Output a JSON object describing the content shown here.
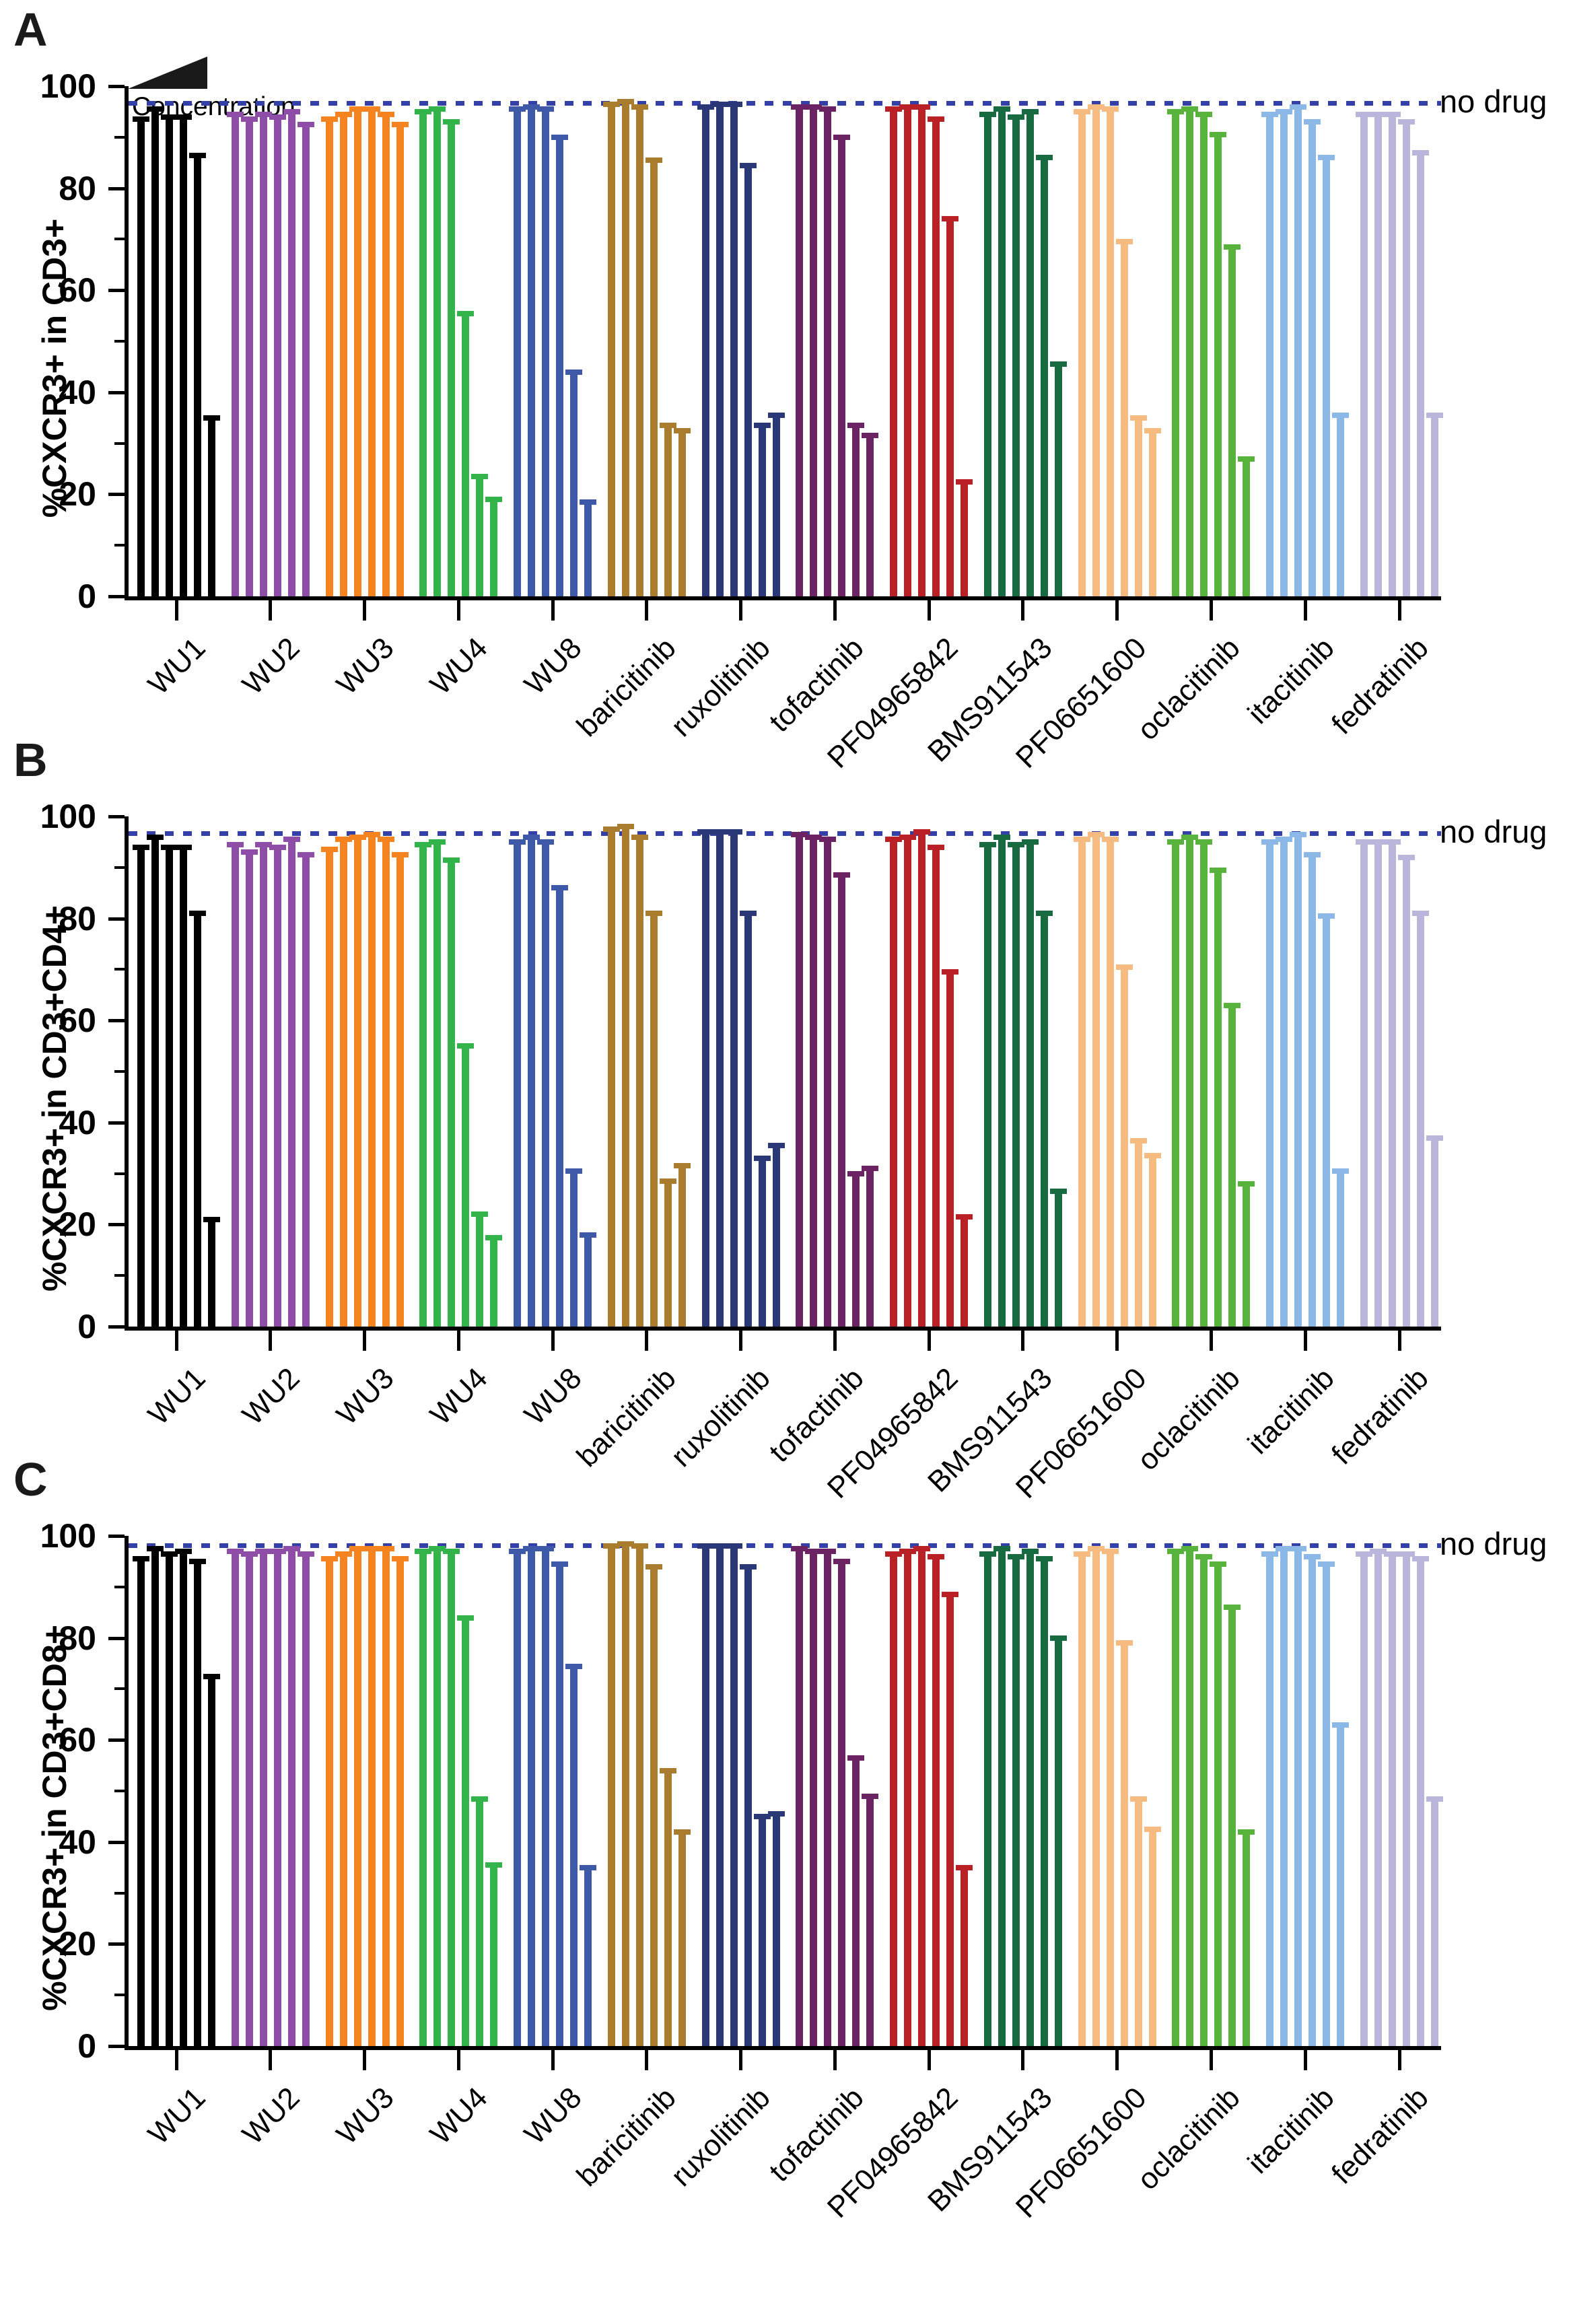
{
  "figure": {
    "reference_line_label": "no drug",
    "concentration_label": "Concentration"
  },
  "chart_data": {
    "type": "bar",
    "ylim": [
      0,
      100
    ],
    "yticks": [
      0,
      20,
      40,
      60,
      80,
      100
    ],
    "minor_yticks": [
      10,
      30,
      50,
      70,
      90
    ],
    "grid": false,
    "legend": "none",
    "bars_per_group": 6,
    "bars_meaning": "increasing drug concentration, left to right within each group",
    "reference_line_label": "no drug",
    "reference_line_color": "#3340a8",
    "categories": [
      "WU1",
      "WU2",
      "WU3",
      "WU4",
      "WU8",
      "baricitinib",
      "ruxolitinib",
      "tofactinib",
      "PF04965842",
      "BMS911543",
      "PF06651600",
      "oclacitinib",
      "itacitinib",
      "fedratinib"
    ],
    "bar_colors": [
      "#000000",
      "#8e4da6",
      "#f5831f",
      "#33b44a",
      "#3d59a8",
      "#a97c2e",
      "#2b3878",
      "#6b2364",
      "#b92126",
      "#186b40",
      "#f5bb80",
      "#57b33b",
      "#8cb8e8",
      "#bab5da"
    ],
    "annotation": {
      "concentration_label": "Concentration"
    },
    "panels": [
      {
        "panel_letter": "A",
        "ylabel": "%CXCR3+ in CD3+",
        "no_drug_value": 96.7,
        "values": [
          [
            94,
            96,
            94.5,
            94.5,
            87,
            35.5
          ],
          [
            95,
            94,
            95,
            94.5,
            95.5,
            93
          ],
          [
            94,
            95,
            96,
            96,
            95,
            93
          ],
          [
            95.5,
            96,
            93.5,
            56,
            24,
            19.5
          ],
          [
            96,
            96.5,
            96,
            90.5,
            44.5,
            19
          ],
          [
            97,
            97.5,
            96.5,
            86,
            34,
            33
          ],
          [
            96.5,
            97,
            97,
            85,
            34,
            36
          ],
          [
            96.5,
            96.5,
            96,
            90.5,
            34,
            32
          ],
          [
            96,
            96.5,
            96.5,
            94,
            74.5,
            23
          ],
          [
            95,
            96,
            94.5,
            95.5,
            86.5,
            46
          ],
          [
            95.5,
            96.5,
            96,
            70,
            35.5,
            33
          ],
          [
            95.5,
            96,
            95,
            91,
            69,
            27.5
          ],
          [
            95,
            95.5,
            96.5,
            93.5,
            86.5,
            36
          ],
          [
            95,
            95,
            95,
            93.5,
            87.5,
            36
          ]
        ]
      },
      {
        "panel_letter": "B",
        "ylabel": "%CXCR3+ in CD3+CD4+",
        "no_drug_value": 96.7,
        "values": [
          [
            94.5,
            96.5,
            94.5,
            94.5,
            81.5,
            21.5
          ],
          [
            95,
            93.5,
            95,
            94.5,
            96,
            93
          ],
          [
            94,
            96,
            96.5,
            97,
            96,
            93
          ],
          [
            95,
            95.5,
            92,
            55.5,
            22.5,
            18
          ],
          [
            95.5,
            96.5,
            95.5,
            86.5,
            31,
            18.5
          ],
          [
            98,
            98.5,
            96.5,
            81.5,
            29,
            32
          ],
          [
            97.5,
            97.5,
            97.5,
            81.5,
            33.5,
            36
          ],
          [
            97,
            96.5,
            96,
            89,
            30.5,
            31.5
          ],
          [
            96,
            96.5,
            97.5,
            94.5,
            70,
            22
          ],
          [
            95,
            96.5,
            95,
            95.5,
            81.5,
            27
          ],
          [
            96,
            97,
            96,
            71,
            37,
            34
          ],
          [
            95.5,
            96.5,
            95.5,
            90,
            63.5,
            28.5
          ],
          [
            95.5,
            96,
            97,
            93,
            81,
            31
          ],
          [
            95.5,
            95.5,
            95.5,
            92.5,
            81.5,
            37.5
          ]
        ]
      },
      {
        "panel_letter": "C",
        "ylabel": "%CXCR3+ in CD3+CD8+",
        "no_drug_value": 98.2,
        "values": [
          [
            96,
            98,
            97,
            97.5,
            95.5,
            73
          ],
          [
            97.5,
            97,
            97.5,
            97.5,
            98,
            97
          ],
          [
            96,
            97,
            98,
            98,
            98,
            96
          ],
          [
            97.5,
            98,
            97.5,
            84.5,
            49,
            36
          ],
          [
            97.5,
            98,
            98,
            95,
            75,
            35.5
          ],
          [
            98.5,
            99,
            98.5,
            94.5,
            54.5,
            42.5
          ],
          [
            98.5,
            98.5,
            98.5,
            94.5,
            45.5,
            46
          ],
          [
            98,
            97.5,
            97.5,
            95.5,
            57,
            49.5
          ],
          [
            97,
            97.5,
            98,
            96.5,
            89,
            35.5
          ],
          [
            97,
            98,
            96.5,
            97.5,
            96,
            80.5
          ],
          [
            97,
            98,
            97.5,
            79.5,
            49,
            43
          ],
          [
            97.5,
            98,
            96.5,
            95,
            86.5,
            42.5
          ],
          [
            97,
            98,
            98,
            96.5,
            95,
            63.5
          ],
          [
            97,
            97.5,
            97,
            97,
            96,
            49
          ]
        ]
      }
    ]
  }
}
